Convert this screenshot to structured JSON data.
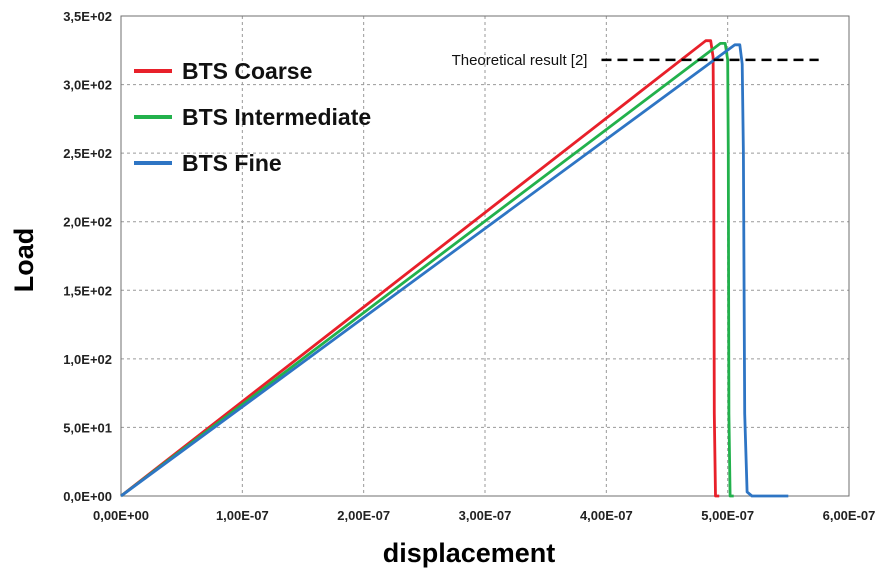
{
  "chart_data": {
    "type": "line",
    "xlabel": "displacement",
    "ylabel": "Load",
    "xlim": [
      0,
      6e-07
    ],
    "ylim": [
      0,
      350
    ],
    "xticks": [
      0,
      1e-07,
      2e-07,
      3e-07,
      4e-07,
      5e-07,
      6e-07
    ],
    "xtick_labels": [
      "0,00E+00",
      "1,00E-07",
      "2,00E-07",
      "3,00E-07",
      "4,00E-07",
      "5,00E-07",
      "6,00E-07"
    ],
    "yticks": [
      0,
      50,
      100,
      150,
      200,
      250,
      300,
      350
    ],
    "ytick_labels": [
      "0,0E+00",
      "5,0E+01",
      "1,0E+02",
      "1,5E+02",
      "2,0E+02",
      "2,5E+02",
      "3,0E+02",
      "3,5E+02"
    ],
    "grid": true,
    "legend_position": "top-left",
    "series": [
      {
        "name": "BTS Coarse",
        "color": "#e8202a",
        "x": [
          0,
          4.82e-07,
          4.86e-07,
          4.88e-07,
          4.885e-07,
          4.89e-07,
          4.9e-07,
          4.93e-07
        ],
        "y": [
          0,
          332,
          332,
          320,
          250,
          60,
          0,
          0
        ]
      },
      {
        "name": "BTS Intermediate",
        "color": "#22b14c",
        "x": [
          0,
          4.94e-07,
          4.98e-07,
          5e-07,
          5.005e-07,
          5.01e-07,
          5.02e-07,
          5.05e-07
        ],
        "y": [
          0,
          330,
          330,
          318,
          250,
          60,
          0,
          0
        ]
      },
      {
        "name": "BTS Fine",
        "color": "#2e75c4",
        "x": [
          0,
          5.06e-07,
          5.1e-07,
          5.12e-07,
          5.13e-07,
          5.14e-07,
          5.16e-07,
          5.2e-07,
          5.5e-07
        ],
        "y": [
          0,
          329,
          329,
          315,
          250,
          60,
          3,
          0,
          0
        ]
      }
    ],
    "reference_line": {
      "label": "Theoretical result [2]",
      "y": 318,
      "x_start": 3.96e-07,
      "x_end": 5.75e-07,
      "color": "#000000"
    }
  }
}
